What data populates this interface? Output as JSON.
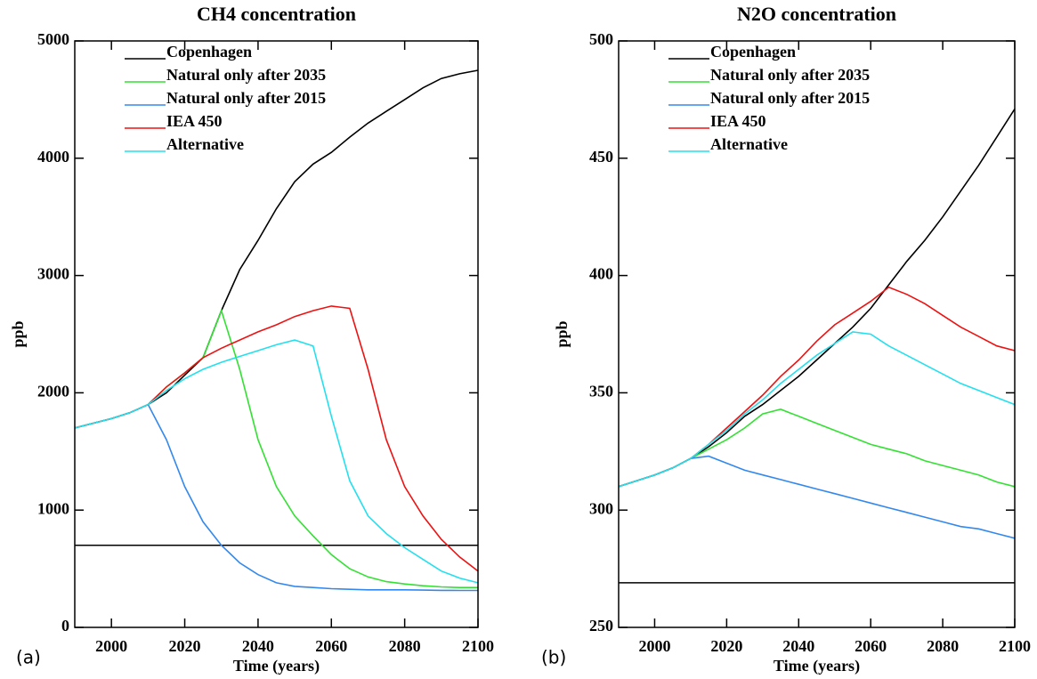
{
  "chart_data": [
    {
      "type": "line",
      "title": "CH4 concentration",
      "xlabel": "Time (years)",
      "ylabel": "ppb",
      "panel_label": "(a)",
      "x": [
        1990,
        2000,
        2005,
        2010,
        2015,
        2020,
        2025,
        2030,
        2035,
        2040,
        2045,
        2050,
        2055,
        2060,
        2065,
        2070,
        2075,
        2080,
        2085,
        2090,
        2095,
        2100
      ],
      "series": [
        {
          "name": "Copenhagen",
          "color": "#000000",
          "values": [
            1700,
            1780,
            1830,
            1900,
            2000,
            2150,
            2300,
            2700,
            3050,
            3300,
            3570,
            3800,
            3950,
            4050,
            4180,
            4300,
            4400,
            4500,
            4600,
            4680,
            4720,
            4750
          ]
        },
        {
          "name": "Natural only  after 2035",
          "color": "#33e033",
          "values": [
            1700,
            1780,
            1830,
            1900,
            2050,
            2170,
            2300,
            2700,
            2200,
            1600,
            1200,
            950,
            780,
            620,
            500,
            430,
            390,
            370,
            355,
            345,
            340,
            340
          ]
        },
        {
          "name": "Natural only  after 2015",
          "color": "#3388ee",
          "values": [
            1700,
            1780,
            1830,
            1900,
            1600,
            1200,
            900,
            700,
            550,
            450,
            380,
            350,
            340,
            330,
            325,
            320,
            320,
            320,
            318,
            316,
            315,
            315
          ]
        },
        {
          "name": "IEA 450",
          "color": "#ee1111",
          "values": [
            1700,
            1780,
            1830,
            1900,
            2050,
            2170,
            2300,
            2380,
            2450,
            2520,
            2580,
            2650,
            2700,
            2740,
            2720,
            2200,
            1600,
            1200,
            950,
            750,
            600,
            480
          ]
        },
        {
          "name": "Alternative",
          "color": "#22e0ee",
          "values": [
            1700,
            1780,
            1830,
            1900,
            2020,
            2120,
            2200,
            2260,
            2310,
            2360,
            2410,
            2450,
            2400,
            1800,
            1250,
            950,
            800,
            680,
            580,
            480,
            420,
            380
          ]
        }
      ],
      "hlines": [
        {
          "value": 700,
          "color": "#000000"
        }
      ],
      "xlim": [
        1990,
        2100
      ],
      "xticks": [
        2000,
        2020,
        2040,
        2060,
        2080,
        2100
      ],
      "ylim": [
        0,
        5000
      ],
      "yticks": [
        0,
        1000,
        2000,
        3000,
        4000,
        5000
      ]
    },
    {
      "type": "line",
      "title": "N2O concentration",
      "xlabel": "Time (years)",
      "ylabel": "ppb",
      "panel_label": "(b)",
      "x": [
        1990,
        2000,
        2005,
        2010,
        2015,
        2020,
        2025,
        2030,
        2035,
        2040,
        2045,
        2050,
        2055,
        2060,
        2065,
        2070,
        2075,
        2080,
        2085,
        2090,
        2095,
        2100
      ],
      "series": [
        {
          "name": "Copenhagen",
          "color": "#000000",
          "values": [
            310,
            315,
            318,
            322,
            327,
            333,
            340,
            345,
            351,
            357,
            364,
            371,
            378,
            386,
            396,
            406,
            415,
            425,
            436,
            447,
            459,
            471
          ]
        },
        {
          "name": "Natural only  after 2035",
          "color": "#33e033",
          "values": [
            310,
            315,
            318,
            322,
            326,
            330,
            335,
            341,
            343,
            340,
            337,
            334,
            331,
            328,
            326,
            324,
            321,
            319,
            317,
            315,
            312,
            310
          ]
        },
        {
          "name": "Natural only  after 2015",
          "color": "#3388ee",
          "values": [
            310,
            315,
            318,
            322,
            323,
            320,
            317,
            315,
            313,
            311,
            309,
            307,
            305,
            303,
            301,
            299,
            297,
            295,
            293,
            292,
            290,
            288
          ]
        },
        {
          "name": "IEA 450",
          "color": "#ee1111",
          "values": [
            310,
            315,
            318,
            322,
            328,
            335,
            342,
            349,
            357,
            364,
            372,
            379,
            384,
            389,
            395,
            392,
            388,
            383,
            378,
            374,
            370,
            368
          ]
        },
        {
          "name": "Alternative",
          "color": "#22e0ee",
          "values": [
            310,
            315,
            318,
            322,
            328,
            334,
            341,
            347,
            354,
            360,
            366,
            371,
            376,
            375,
            370,
            366,
            362,
            358,
            354,
            351,
            348,
            345
          ]
        }
      ],
      "hlines": [
        {
          "value": 269,
          "color": "#000000"
        }
      ],
      "xlim": [
        1990,
        2100
      ],
      "xticks": [
        2000,
        2020,
        2040,
        2060,
        2080,
        2100
      ],
      "ylim": [
        250,
        500
      ],
      "yticks": [
        250,
        300,
        350,
        400,
        450,
        500
      ]
    }
  ]
}
